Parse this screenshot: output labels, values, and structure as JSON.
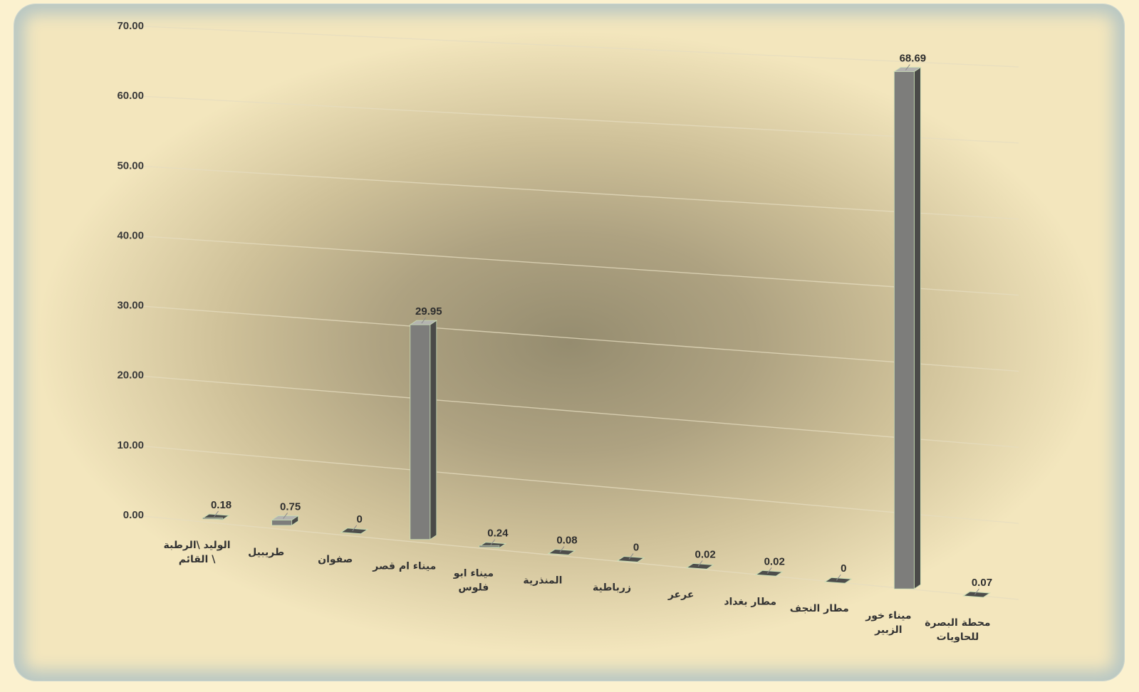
{
  "chart_data": {
    "type": "bar",
    "three_d": true,
    "categories": [
      "الوليد \\الرطبة \\ القائم",
      "طريبيل",
      "صفوان",
      "ميناء ام قصر",
      "ميناء ابو فلوس",
      "المنذرية",
      "زرباطية",
      "عرعر",
      "مطار بغداد",
      "مطار النجف",
      "ميناء خور الزبير",
      "محطة البصرة للحاويات"
    ],
    "category_lines": [
      [
        "الوليد \\الرطبة",
        "\\ القائم"
      ],
      [
        "طريبيل"
      ],
      [
        "صفوان"
      ],
      [
        "ميناء ام قصر"
      ],
      [
        "ميناء ابو",
        "فلوس"
      ],
      [
        "المنذرية"
      ],
      [
        "زرباطية"
      ],
      [
        "عرعر"
      ],
      [
        "مطار بغداد"
      ],
      [
        "مطار النجف"
      ],
      [
        "ميناء خور",
        "الزبير"
      ],
      [
        "محطة البصرة",
        "للحاويات"
      ]
    ],
    "values": [
      0.18,
      0.75,
      0,
      29.95,
      0.24,
      0.08,
      0,
      0.02,
      0.02,
      0,
      68.69,
      0.07
    ],
    "value_labels": [
      "0.18",
      "0.75",
      "0",
      "29.95",
      "0.24",
      "0.08",
      "0",
      "0.02",
      "0.02",
      "0",
      "68.69",
      "0.07"
    ],
    "y_ticks": [
      "0.00",
      "10.00",
      "20.00",
      "30.00",
      "40.00",
      "50.00",
      "60.00",
      "70.00"
    ],
    "ylim": [
      0,
      70
    ],
    "grid": true,
    "legend": "none",
    "colors": {
      "bar_front": "#7d7d7b",
      "bar_side": "#4a4a48",
      "bar_top": "#b4b4b0",
      "bar_edge": "#c8dcb4",
      "flat_bar": "#4d4d4b"
    }
  }
}
